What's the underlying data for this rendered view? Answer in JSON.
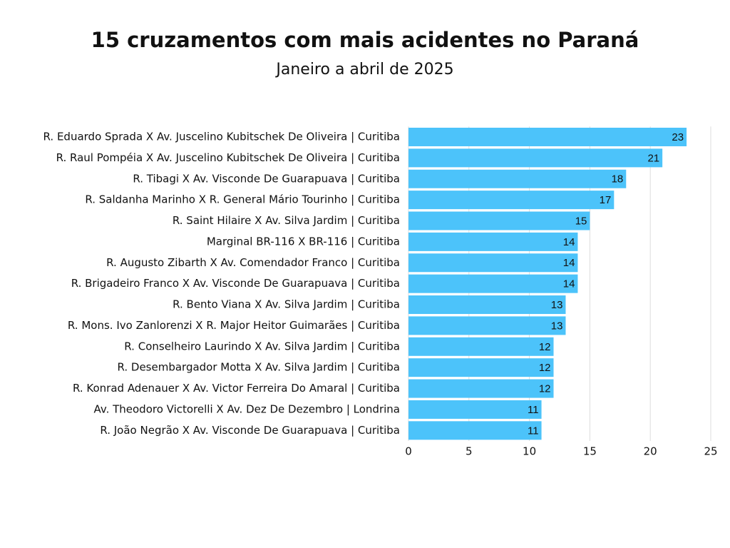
{
  "chart_data": {
    "type": "bar",
    "orientation": "horizontal",
    "title": "15 cruzamentos com mais acidentes no Paraná",
    "subtitle": "Janeiro a abril de 2025",
    "categories": [
      "R. Eduardo Sprada X Av. Juscelino Kubitschek De Oliveira | Curitiba",
      "R. Raul Pompéia X Av. Juscelino Kubitschek De Oliveira | Curitiba",
      "R. Tibagi X Av. Visconde De Guarapuava | Curitiba",
      "R. Saldanha Marinho X R. General Mário Tourinho | Curitiba",
      "R. Saint Hilaire X Av. Silva Jardim | Curitiba",
      "Marginal BR-116 X BR-116 | Curitiba",
      "R. Augusto Zibarth X Av. Comendador Franco | Curitiba",
      "R. Brigadeiro Franco X Av. Visconde De Guarapuava | Curitiba",
      "R. Bento Viana X Av. Silva Jardim | Curitiba",
      "R. Mons. Ivo Zanlorenzi X R. Major Heitor Guimarães | Curitiba",
      "R. Conselheiro Laurindo X Av. Silva Jardim | Curitiba",
      "R. Desembargador Motta X Av. Silva Jardim | Curitiba",
      "R. Konrad Adenauer X Av. Victor Ferreira Do Amaral | Curitiba",
      "Av. Theodoro Victorelli X Av. Dez De Dezembro | Londrina",
      "R. João Negrão X Av. Visconde De Guarapuava | Curitiba"
    ],
    "values": [
      23,
      21,
      18,
      17,
      15,
      14,
      14,
      14,
      13,
      13,
      12,
      12,
      12,
      11,
      11
    ],
    "color": "#4cc3fa",
    "xlim": [
      0,
      25
    ],
    "xticks": [
      0,
      5,
      10,
      15,
      20,
      25
    ],
    "grid": true
  }
}
